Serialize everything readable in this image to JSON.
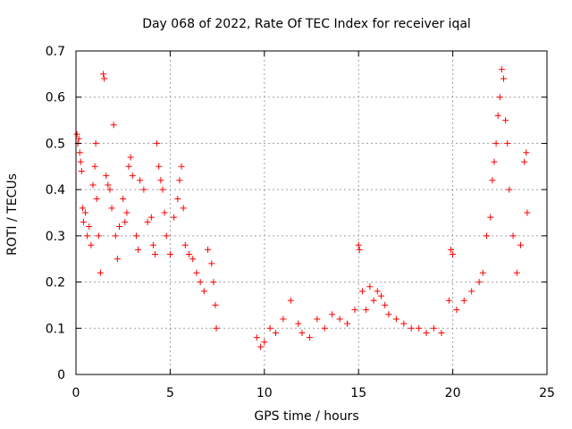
{
  "chart_data": {
    "type": "scatter",
    "title": "Day 068 of 2022, Rate Of TEC Index for receiver iqal",
    "xlabel": "GPS time / hours",
    "ylabel": "ROTI / TECUs",
    "xlim": [
      0,
      25
    ],
    "ylim": [
      0,
      0.7
    ],
    "xticks": [
      0,
      5,
      10,
      15,
      20,
      25
    ],
    "yticks": [
      0,
      0.1,
      0.2,
      0.3,
      0.4,
      0.5,
      0.6,
      0.7
    ],
    "grid": true,
    "marker": "+",
    "color": "#ff0000",
    "points": [
      [
        0.05,
        0.52
      ],
      [
        0.1,
        0.5
      ],
      [
        0.15,
        0.51
      ],
      [
        0.2,
        0.48
      ],
      [
        0.25,
        0.46
      ],
      [
        0.3,
        0.44
      ],
      [
        0.35,
        0.36
      ],
      [
        0.4,
        0.33
      ],
      [
        0.5,
        0.35
      ],
      [
        0.6,
        0.3
      ],
      [
        0.7,
        0.32
      ],
      [
        0.8,
        0.28
      ],
      [
        0.9,
        0.41
      ],
      [
        1.0,
        0.45
      ],
      [
        1.05,
        0.5
      ],
      [
        1.1,
        0.38
      ],
      [
        1.2,
        0.3
      ],
      [
        1.3,
        0.22
      ],
      [
        1.45,
        0.65
      ],
      [
        1.5,
        0.64
      ],
      [
        1.6,
        0.43
      ],
      [
        1.7,
        0.41
      ],
      [
        1.8,
        0.4
      ],
      [
        1.9,
        0.36
      ],
      [
        2.0,
        0.54
      ],
      [
        2.1,
        0.3
      ],
      [
        2.2,
        0.25
      ],
      [
        2.3,
        0.32
      ],
      [
        2.5,
        0.38
      ],
      [
        2.6,
        0.33
      ],
      [
        2.7,
        0.35
      ],
      [
        2.8,
        0.45
      ],
      [
        2.9,
        0.47
      ],
      [
        3.0,
        0.43
      ],
      [
        3.2,
        0.3
      ],
      [
        3.3,
        0.27
      ],
      [
        3.4,
        0.42
      ],
      [
        3.6,
        0.4
      ],
      [
        3.8,
        0.33
      ],
      [
        4.0,
        0.34
      ],
      [
        4.1,
        0.28
      ],
      [
        4.2,
        0.26
      ],
      [
        4.3,
        0.5
      ],
      [
        4.4,
        0.45
      ],
      [
        4.5,
        0.42
      ],
      [
        4.6,
        0.4
      ],
      [
        4.7,
        0.35
      ],
      [
        4.8,
        0.3
      ],
      [
        5.0,
        0.26
      ],
      [
        5.2,
        0.34
      ],
      [
        5.4,
        0.38
      ],
      [
        5.5,
        0.42
      ],
      [
        5.6,
        0.45
      ],
      [
        5.7,
        0.36
      ],
      [
        5.8,
        0.28
      ],
      [
        6.0,
        0.26
      ],
      [
        6.2,
        0.25
      ],
      [
        6.4,
        0.22
      ],
      [
        6.6,
        0.2
      ],
      [
        6.8,
        0.18
      ],
      [
        7.0,
        0.27
      ],
      [
        7.2,
        0.24
      ],
      [
        7.3,
        0.2
      ],
      [
        7.4,
        0.15
      ],
      [
        7.45,
        0.1
      ],
      [
        9.6,
        0.08
      ],
      [
        9.8,
        0.06
      ],
      [
        10.0,
        0.07
      ],
      [
        10.3,
        0.1
      ],
      [
        10.6,
        0.09
      ],
      [
        11.0,
        0.12
      ],
      [
        11.4,
        0.16
      ],
      [
        11.8,
        0.11
      ],
      [
        12.0,
        0.09
      ],
      [
        12.4,
        0.08
      ],
      [
        12.8,
        0.12
      ],
      [
        13.2,
        0.1
      ],
      [
        13.6,
        0.13
      ],
      [
        14.0,
        0.12
      ],
      [
        14.4,
        0.11
      ],
      [
        14.8,
        0.14
      ],
      [
        15.0,
        0.28
      ],
      [
        15.05,
        0.27
      ],
      [
        15.2,
        0.18
      ],
      [
        15.4,
        0.14
      ],
      [
        15.6,
        0.19
      ],
      [
        15.8,
        0.16
      ],
      [
        16.0,
        0.18
      ],
      [
        16.2,
        0.17
      ],
      [
        16.4,
        0.15
      ],
      [
        16.6,
        0.13
      ],
      [
        17.0,
        0.12
      ],
      [
        17.4,
        0.11
      ],
      [
        17.8,
        0.1
      ],
      [
        18.2,
        0.1
      ],
      [
        18.6,
        0.09
      ],
      [
        19.0,
        0.1
      ],
      [
        19.4,
        0.09
      ],
      [
        19.8,
        0.16
      ],
      [
        19.9,
        0.27
      ],
      [
        20.0,
        0.26
      ],
      [
        20.2,
        0.14
      ],
      [
        20.6,
        0.16
      ],
      [
        21.0,
        0.18
      ],
      [
        21.4,
        0.2
      ],
      [
        21.6,
        0.22
      ],
      [
        21.8,
        0.3
      ],
      [
        22.0,
        0.34
      ],
      [
        22.1,
        0.42
      ],
      [
        22.2,
        0.46
      ],
      [
        22.3,
        0.5
      ],
      [
        22.4,
        0.56
      ],
      [
        22.5,
        0.6
      ],
      [
        22.6,
        0.66
      ],
      [
        22.7,
        0.64
      ],
      [
        22.8,
        0.55
      ],
      [
        22.9,
        0.5
      ],
      [
        23.0,
        0.4
      ],
      [
        23.2,
        0.3
      ],
      [
        23.4,
        0.22
      ],
      [
        23.6,
        0.28
      ],
      [
        23.8,
        0.46
      ],
      [
        23.9,
        0.48
      ],
      [
        23.95,
        0.35
      ]
    ]
  }
}
